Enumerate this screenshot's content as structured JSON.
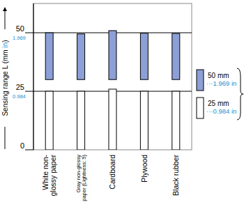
{
  "chart_data": {
    "type": "floating_bar",
    "y_label": "Sensing range L (mm",
    "y_label_in": "in",
    "y_label_end": ")",
    "categories": [
      "White non-\nglossy paper",
      "Gray non-glossy\npaper (Lightness: 5)",
      "Cardboard",
      "Plywood",
      "Black rubber"
    ],
    "series": [
      {
        "name": "50 mm",
        "name_in": "···1.969 in",
        "color": "#8c9fd6",
        "low": [
          30,
          30,
          30,
          30,
          30
        ],
        "values": [
          50,
          49.5,
          50.9,
          49.8,
          49.7
        ]
      },
      {
        "name": "25 mm",
        "name_in": "···0.984 in",
        "color": "#ffffff",
        "low": [
          0,
          0,
          0,
          0,
          0
        ],
        "values": [
          25,
          25,
          25.9,
          25,
          25
        ]
      }
    ],
    "ylim": [
      0,
      62.5
    ],
    "yticks": [
      0,
      25,
      50
    ],
    "y2lim": [
      0,
      2.461
    ],
    "y2ticks": [
      {
        "value": 0.984,
        "label": "0.984"
      },
      {
        "value": 1.969,
        "label": "1.969"
      }
    ],
    "grid": true,
    "legend": "right"
  }
}
